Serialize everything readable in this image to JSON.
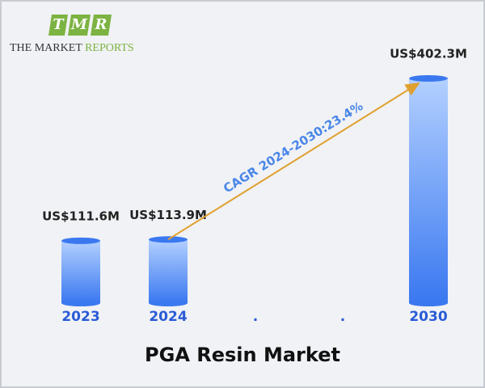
{
  "logo": {
    "letters": [
      "T",
      "M",
      "R"
    ],
    "name": [
      "THE MARKET",
      "REPORTS"
    ]
  },
  "chart_data": {
    "type": "bar",
    "title": "PGA Resin Market",
    "categories": [
      "2023",
      "2024",
      ".",
      ".",
      "2030"
    ],
    "values": [
      111.6,
      113.9,
      null,
      null,
      402.3
    ],
    "value_labels": [
      "US$111.6M",
      "US$113.9M",
      null,
      null,
      "US$402.3M"
    ],
    "color": "#3a78f0",
    "annotation": "CAGR 2024-2030:23.4%"
  }
}
